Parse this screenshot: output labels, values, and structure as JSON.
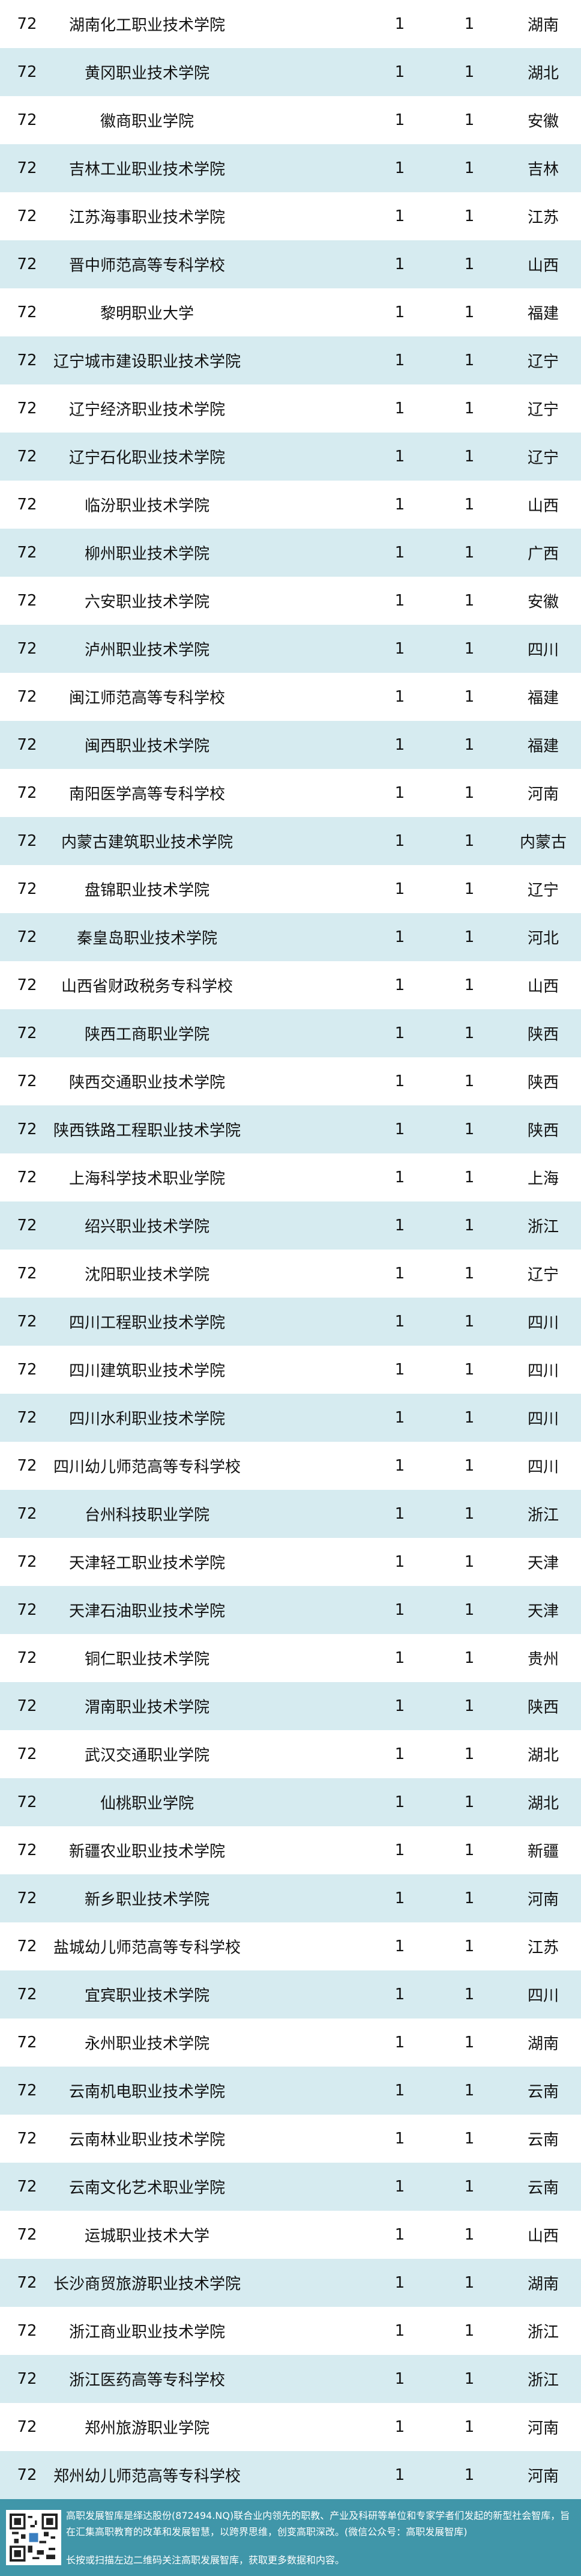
{
  "rows": [
    [
      "72",
      "湖南化工职业技术学院",
      "1",
      "1",
      "湖南"
    ],
    [
      "72",
      "黄冈职业技术学院",
      "1",
      "1",
      "湖北"
    ],
    [
      "72",
      "徽商职业学院",
      "1",
      "1",
      "安徽"
    ],
    [
      "72",
      "吉林工业职业技术学院",
      "1",
      "1",
      "吉林"
    ],
    [
      "72",
      "江苏海事职业技术学院",
      "1",
      "1",
      "江苏"
    ],
    [
      "72",
      "晋中师范高等专科学校",
      "1",
      "1",
      "山西"
    ],
    [
      "72",
      "黎明职业大学",
      "1",
      "1",
      "福建"
    ],
    [
      "72",
      "辽宁城市建设职业技术学院",
      "1",
      "1",
      "辽宁"
    ],
    [
      "72",
      "辽宁经济职业技术学院",
      "1",
      "1",
      "辽宁"
    ],
    [
      "72",
      "辽宁石化职业技术学院",
      "1",
      "1",
      "辽宁"
    ],
    [
      "72",
      "临汾职业技术学院",
      "1",
      "1",
      "山西"
    ],
    [
      "72",
      "柳州职业技术学院",
      "1",
      "1",
      "广西"
    ],
    [
      "72",
      "六安职业技术学院",
      "1",
      "1",
      "安徽"
    ],
    [
      "72",
      "泸州职业技术学院",
      "1",
      "1",
      "四川"
    ],
    [
      "72",
      "闽江师范高等专科学校",
      "1",
      "1",
      "福建"
    ],
    [
      "72",
      "闽西职业技术学院",
      "1",
      "1",
      "福建"
    ],
    [
      "72",
      "南阳医学高等专科学校",
      "1",
      "1",
      "河南"
    ],
    [
      "72",
      "内蒙古建筑职业技术学院",
      "1",
      "1",
      "内蒙古"
    ],
    [
      "72",
      "盘锦职业技术学院",
      "1",
      "1",
      "辽宁"
    ],
    [
      "72",
      "秦皇岛职业技术学院",
      "1",
      "1",
      "河北"
    ],
    [
      "72",
      "山西省财政税务专科学校",
      "1",
      "1",
      "山西"
    ],
    [
      "72",
      "陕西工商职业学院",
      "1",
      "1",
      "陕西"
    ],
    [
      "72",
      "陕西交通职业技术学院",
      "1",
      "1",
      "陕西"
    ],
    [
      "72",
      "陕西铁路工程职业技术学院",
      "1",
      "1",
      "陕西"
    ],
    [
      "72",
      "上海科学技术职业学院",
      "1",
      "1",
      "上海"
    ],
    [
      "72",
      "绍兴职业技术学院",
      "1",
      "1",
      "浙江"
    ],
    [
      "72",
      "沈阳职业技术学院",
      "1",
      "1",
      "辽宁"
    ],
    [
      "72",
      "四川工程职业技术学院",
      "1",
      "1",
      "四川"
    ],
    [
      "72",
      "四川建筑职业技术学院",
      "1",
      "1",
      "四川"
    ],
    [
      "72",
      "四川水利职业技术学院",
      "1",
      "1",
      "四川"
    ],
    [
      "72",
      "四川幼儿师范高等专科学校",
      "1",
      "1",
      "四川"
    ],
    [
      "72",
      "台州科技职业学院",
      "1",
      "1",
      "浙江"
    ],
    [
      "72",
      "天津轻工职业技术学院",
      "1",
      "1",
      "天津"
    ],
    [
      "72",
      "天津石油职业技术学院",
      "1",
      "1",
      "天津"
    ],
    [
      "72",
      "铜仁职业技术学院",
      "1",
      "1",
      "贵州"
    ],
    [
      "72",
      "渭南职业技术学院",
      "1",
      "1",
      "陕西"
    ],
    [
      "72",
      "武汉交通职业学院",
      "1",
      "1",
      "湖北"
    ],
    [
      "72",
      "仙桃职业学院",
      "1",
      "1",
      "湖北"
    ],
    [
      "72",
      "新疆农业职业技术学院",
      "1",
      "1",
      "新疆"
    ],
    [
      "72",
      "新乡职业技术学院",
      "1",
      "1",
      "河南"
    ],
    [
      "72",
      "盐城幼儿师范高等专科学校",
      "1",
      "1",
      "江苏"
    ],
    [
      "72",
      "宜宾职业技术学院",
      "1",
      "1",
      "四川"
    ],
    [
      "72",
      "永州职业技术学院",
      "1",
      "1",
      "湖南"
    ],
    [
      "72",
      "云南机电职业技术学院",
      "1",
      "1",
      "云南"
    ],
    [
      "72",
      "云南林业职业技术学院",
      "1",
      "1",
      "云南"
    ],
    [
      "72",
      "云南文化艺术职业学院",
      "1",
      "1",
      "云南"
    ],
    [
      "72",
      "运城职业技术大学",
      "1",
      "1",
      "山西"
    ],
    [
      "72",
      "长沙商贸旅游职业技术学院",
      "1",
      "1",
      "湖南"
    ],
    [
      "72",
      "浙江商业职业技术学院",
      "1",
      "1",
      "浙江"
    ],
    [
      "72",
      "浙江医药高等专科学校",
      "1",
      "1",
      "浙江"
    ],
    [
      "72",
      "郑州旅游职业学院",
      "1",
      "1",
      "河南"
    ],
    [
      "72",
      "郑州幼儿师范高等专科学校",
      "1",
      "1",
      "河南"
    ]
  ],
  "footer": {
    "intro": "高职发展智库是绎达股份(872494.NQ)联合业内领先的职教、产业及科研等单位和专家学者们发起的新型社会智库，旨在汇集高职教育的改革和发展智慧，以跨界思维，创变高职深改。(微信公众号：高职发展智库)",
    "cta": "长按或扫描左边二维码关注高职发展智库，获取更多数据和内容。"
  },
  "colors": {
    "stripe": "#d6ebf0",
    "footer": "#4096a9"
  }
}
